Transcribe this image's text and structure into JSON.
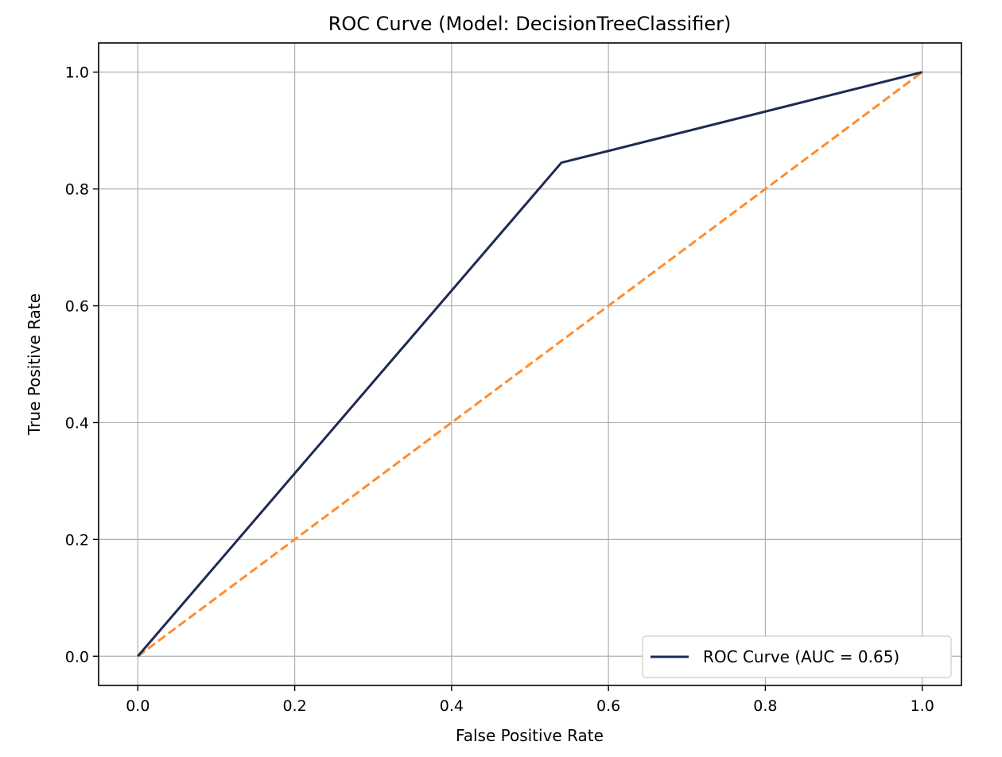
{
  "chart_data": {
    "type": "line",
    "title": "ROC Curve (Model: DecisionTreeClassifier)",
    "xlabel": "False Positive Rate",
    "ylabel": "True Positive Rate",
    "xlim": [
      -0.05,
      1.05
    ],
    "ylim": [
      -0.05,
      1.05
    ],
    "xticks": [
      0.0,
      0.2,
      0.4,
      0.6,
      0.8,
      1.0
    ],
    "yticks": [
      0.0,
      0.2,
      0.4,
      0.6,
      0.8,
      1.0
    ],
    "xtick_labels": [
      "0.0",
      "0.2",
      "0.4",
      "0.6",
      "0.8",
      "1.0"
    ],
    "ytick_labels": [
      "0.0",
      "0.2",
      "0.4",
      "0.6",
      "0.8",
      "1.0"
    ],
    "grid": true,
    "legend_position": "lower-right",
    "series": [
      {
        "name": "ROC Curve (AUC = 0.65)",
        "x": [
          0.0,
          0.54,
          1.0
        ],
        "y": [
          0.0,
          0.845,
          1.0
        ],
        "color": "#1f2a52",
        "style": "solid"
      },
      {
        "x": [
          0.0,
          1.0
        ],
        "y": [
          0.0,
          1.0
        ],
        "color": "#ff8c2e",
        "style": "dashed"
      }
    ]
  }
}
